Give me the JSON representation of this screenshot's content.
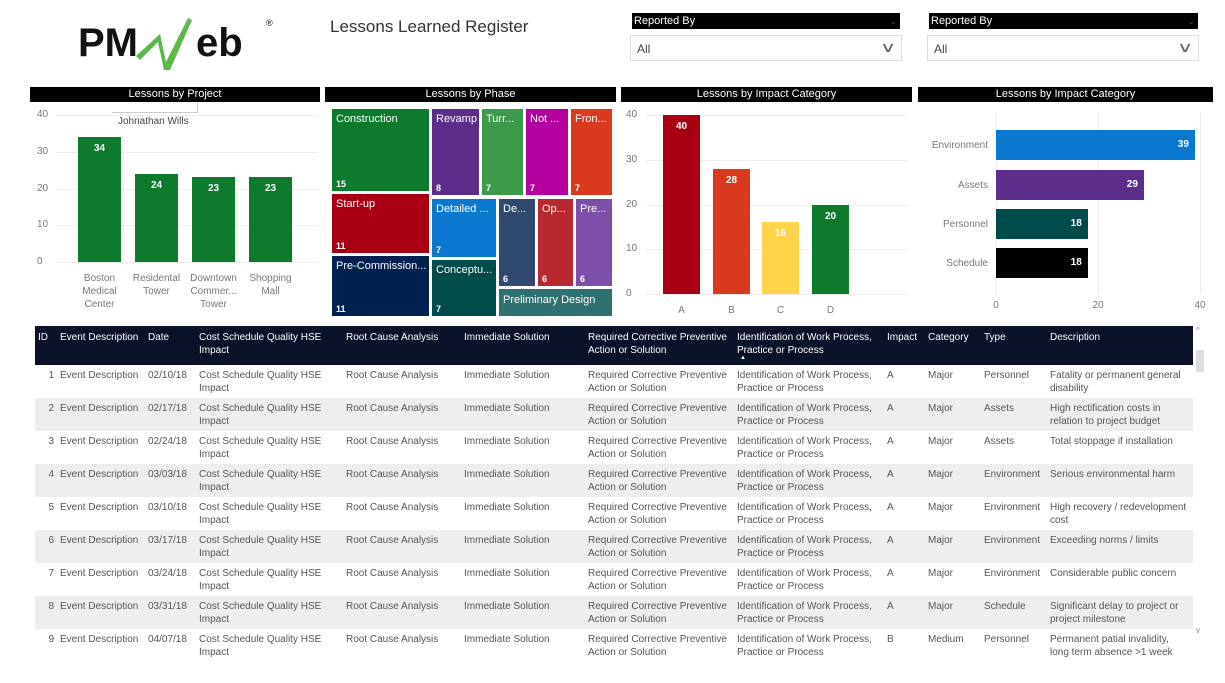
{
  "header": {
    "logo_text": "PMWeb",
    "title": "Lessons Learned Register"
  },
  "slicers": [
    {
      "label": "Reported By",
      "value": "All"
    },
    {
      "label": "Reported By",
      "value": "All"
    }
  ],
  "tooltip": {
    "value": "Johnathan Wills"
  },
  "chart_data": [
    {
      "type": "bar",
      "title": "Lessons by Project",
      "categories": [
        "Boston Medical Center",
        "Residental Tower",
        "Downtown Commer... Tower",
        "Shopping Mall"
      ],
      "values": [
        34,
        24,
        23,
        23
      ],
      "ylim": [
        0,
        40
      ],
      "yticks": [
        "0",
        "10",
        "20",
        "30",
        "40"
      ],
      "color": "#0e7a2e"
    },
    {
      "type": "treemap",
      "title": "Lessons by Phase",
      "items": [
        {
          "label": "Construction",
          "value": 15,
          "color": "#0e7a2e"
        },
        {
          "label": "Revamp",
          "value": 8,
          "color": "#5c2d8a"
        },
        {
          "label": "Turr...",
          "value": 7,
          "color": "#3d9a4a"
        },
        {
          "label": "Not ...",
          "value": 7,
          "color": "#b4009e"
        },
        {
          "label": "Fron...",
          "value": 7,
          "color": "#d9391e"
        },
        {
          "label": "Start-up",
          "value": 11,
          "color": "#a80012"
        },
        {
          "label": "Pre-Commission...",
          "value": 11,
          "color": "#00204f"
        },
        {
          "label": "Detailed ...",
          "value": 7,
          "color": "#0b78d0"
        },
        {
          "label": "Conceptu...",
          "value": 7,
          "color": "#004c4a"
        },
        {
          "label": "De...",
          "value": 6,
          "color": "#2f4a6e"
        },
        {
          "label": "Op...",
          "value": 6,
          "color": "#b8282f"
        },
        {
          "label": "Pre...",
          "value": 6,
          "color": "#7e4fa8"
        },
        {
          "label": "Preliminary Design",
          "value": null,
          "color": "#2f7070"
        }
      ]
    },
    {
      "type": "bar",
      "title": "Lessons by Impact Category",
      "categories": [
        "A",
        "B",
        "C",
        "D"
      ],
      "values": [
        40,
        28,
        16,
        20
      ],
      "ylim": [
        0,
        40
      ],
      "yticks": [
        "0",
        "10",
        "20",
        "30",
        "40"
      ],
      "colors": [
        "#a80012",
        "#d9391e",
        "#fdd44a",
        "#0e7a2e"
      ]
    },
    {
      "type": "hbar",
      "title": "Lessons by Impact Category",
      "categories": [
        "Environment",
        "Assets",
        "Personnel",
        "Schedule"
      ],
      "values": [
        39,
        29,
        18,
        18
      ],
      "xlim": [
        0,
        40
      ],
      "xticks": [
        "0",
        "20",
        "40"
      ],
      "colors": [
        "#0b78d0",
        "#5c2d8a",
        "#004c4a",
        "#000000"
      ]
    }
  ],
  "table": {
    "columns": [
      "ID",
      "Event Description",
      "Date",
      "Cost Schedule Quality HSE Impact",
      "Root Cause Analysis",
      "Immediate Solution",
      "Required Corrective Preventive Action or Solution",
      "Identification of Work Process, Practice or Process",
      "Impact",
      "Category",
      "Type",
      "Description"
    ],
    "rows": [
      [
        "1",
        "Event Description",
        "02/10/18",
        "Cost Schedule Quality HSE Impact",
        "Root Cause Analysis",
        "Immediate Solution",
        "Required Corrective Preventive Action or Solution",
        "Identification of Work Process, Practice or Process",
        "A",
        "Major",
        "Personnel",
        "Fatality or permanent general disability"
      ],
      [
        "2",
        "Event Description",
        "02/17/18",
        "Cost Schedule Quality HSE Impact",
        "Root Cause Analysis",
        "Immediate Solution",
        "Required Corrective Preventive Action or Solution",
        "Identification of Work Process, Practice or Process",
        "A",
        "Major",
        "Assets",
        "High rectification costs in relation to project budget"
      ],
      [
        "3",
        "Event Description",
        "02/24/18",
        "Cost Schedule Quality HSE Impact",
        "Root Cause Analysis",
        "Immediate Solution",
        "Required Corrective Preventive Action or Solution",
        "Identification of Work Process, Practice or Process",
        "A",
        "Major",
        "Assets",
        "Total stoppage if installation"
      ],
      [
        "4",
        "Event Description",
        "03/03/18",
        "Cost Schedule Quality HSE Impact",
        "Root Cause Analysis",
        "Immediate Solution",
        "Required Corrective Preventive Action or Solution",
        "Identification of Work Process, Practice or Process",
        "A",
        "Major",
        "Environment",
        "Serious environmental harm"
      ],
      [
        "5",
        "Event Description",
        "03/10/18",
        "Cost Schedule Quality HSE Impact",
        "Root Cause Analysis",
        "Immediate Solution",
        "Required Corrective Preventive Action or Solution",
        "Identification of Work Process, Practice or Process",
        "A",
        "Major",
        "Environment",
        "High recovery / redevelopment cost"
      ],
      [
        "6",
        "Event Description",
        "03/17/18",
        "Cost Schedule Quality HSE Impact",
        "Root Cause Analysis",
        "Immediate Solution",
        "Required Corrective Preventive Action or Solution",
        "Identification of Work Process, Practice or Process",
        "A",
        "Major",
        "Environment",
        "Exceeding norms / limits"
      ],
      [
        "7",
        "Event Description",
        "03/24/18",
        "Cost Schedule Quality HSE Impact",
        "Root Cause Analysis",
        "Immediate Solution",
        "Required Corrective Preventive Action or Solution",
        "Identification of Work Process, Practice or Process",
        "A",
        "Major",
        "Environment",
        "Considerable public concern"
      ],
      [
        "8",
        "Event Description",
        "03/31/18",
        "Cost Schedule Quality HSE Impact",
        "Root Cause Analysis",
        "Immediate Solution",
        "Required Corrective Preventive Action or Solution",
        "Identification of Work Process, Practice or Process",
        "A",
        "Major",
        "Schedule",
        "Significant delay to project or project milestone"
      ],
      [
        "9",
        "Event Description",
        "04/07/18",
        "Cost Schedule Quality HSE Impact",
        "Root Cause Analysis",
        "Immediate Solution",
        "Required Corrective Preventive Action or Solution",
        "Identification of Work Process, Practice or Process",
        "B",
        "Medium",
        "Personnel",
        "Permanent patial invalidity, long term absence >1 week"
      ]
    ]
  }
}
